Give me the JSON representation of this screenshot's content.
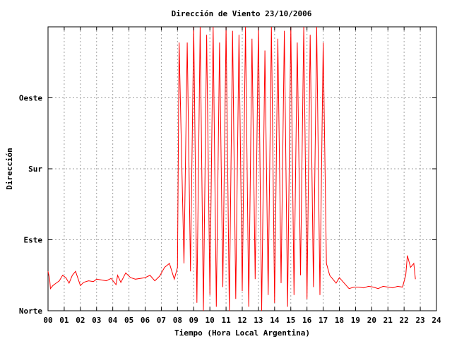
{
  "chart_data": {
    "type": "line",
    "title": "Dirección de Viento 23/10/2006",
    "xlabel": "Tiempo (Hora Local Argentina)",
    "ylabel": "Dirección",
    "x_ticks": [
      "00",
      "01",
      "02",
      "03",
      "04",
      "05",
      "06",
      "07",
      "08",
      "09",
      "10",
      "11",
      "12",
      "13",
      "14",
      "15",
      "16",
      "17",
      "18",
      "19",
      "20",
      "21",
      "22",
      "23",
      "24"
    ],
    "y_ticks": [
      {
        "value": 0,
        "label": "Norte"
      },
      {
        "value": 90,
        "label": "Este"
      },
      {
        "value": 180,
        "label": "Sur"
      },
      {
        "value": 270,
        "label": "Oeste"
      }
    ],
    "xlim": [
      0,
      24
    ],
    "ylim": [
      0,
      360
    ],
    "grid": true,
    "line_color": "#ff0000",
    "series": [
      {
        "name": "",
        "hours": [
          0.0,
          0.1,
          0.15,
          0.3,
          0.5,
          0.7,
          0.9,
          1.1,
          1.3,
          1.5,
          1.7,
          2.0,
          2.2,
          2.5,
          2.8,
          3.0,
          3.3,
          3.6,
          3.9,
          4.2,
          4.3,
          4.5,
          4.8,
          5.1,
          5.4,
          5.7,
          6.0,
          6.3,
          6.6,
          6.9,
          7.2,
          7.5,
          7.8,
          8.0,
          8.1,
          8.4,
          8.6,
          8.8,
          9.0,
          9.2,
          9.4,
          9.6,
          9.8,
          10.0,
          10.2,
          10.4,
          10.6,
          10.8,
          11.0,
          11.2,
          11.4,
          11.6,
          11.8,
          12.0,
          12.2,
          12.4,
          12.6,
          12.8,
          13.0,
          13.2,
          13.4,
          13.6,
          13.8,
          14.0,
          14.2,
          14.4,
          14.6,
          14.8,
          15.0,
          15.2,
          15.4,
          15.6,
          15.8,
          16.0,
          16.2,
          16.4,
          16.6,
          16.8,
          17.0,
          17.2,
          17.4,
          17.6,
          17.8,
          18.0,
          18.3,
          18.6,
          18.9,
          19.2,
          19.5,
          19.8,
          20.1,
          20.4,
          20.7,
          21.0,
          21.3,
          21.6,
          21.9,
          22.1,
          22.2,
          22.4,
          22.6,
          22.7
        ],
        "values": [
          50,
          40,
          28,
          32,
          35,
          38,
          45,
          42,
          35,
          45,
          50,
          32,
          36,
          38,
          37,
          40,
          39,
          38,
          41,
          33,
          45,
          36,
          48,
          42,
          40,
          41,
          42,
          45,
          38,
          44,
          55,
          60,
          40,
          55,
          340,
          60,
          340,
          50,
          360,
          10,
          360,
          0,
          350,
          20,
          360,
          5,
          340,
          30,
          360,
          0,
          355,
          15,
          350,
          25,
          360,
          5,
          345,
          40,
          360,
          0,
          330,
          20,
          360,
          10,
          345,
          35,
          355,
          5,
          360,
          20,
          340,
          45,
          360,
          15,
          350,
          30,
          360,
          20,
          340,
          60,
          45,
          40,
          35,
          42,
          35,
          28,
          30,
          30,
          29,
          31,
          30,
          28,
          31,
          30,
          29,
          31,
          30,
          45,
          70,
          55,
          60,
          40
        ]
      }
    ]
  }
}
